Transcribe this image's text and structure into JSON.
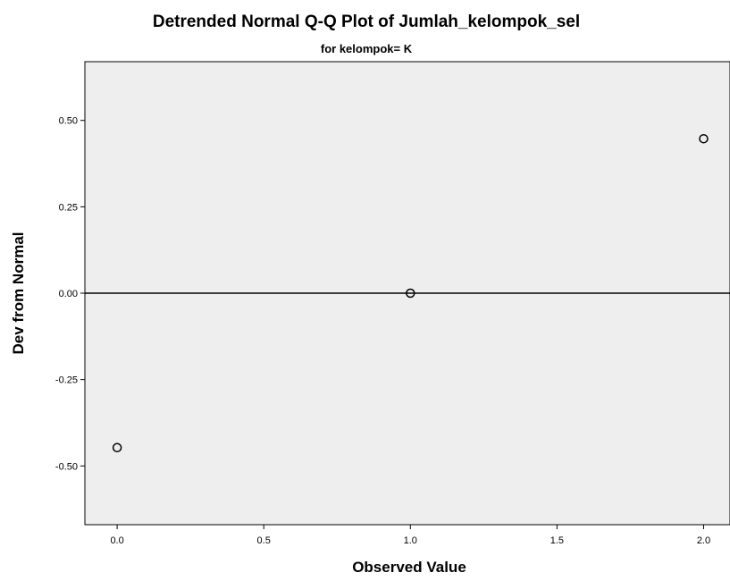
{
  "chart_data": {
    "type": "scatter",
    "title": "Detrended Normal Q-Q Plot of Jumlah_kelompok_sel",
    "subtitle": "for kelompok= K",
    "xlabel": "Observed Value",
    "ylabel": "Dev from Normal",
    "xlim": [
      -0.11,
      2.09
    ],
    "ylim": [
      -0.67,
      0.67
    ],
    "x_ticks": [
      0.0,
      0.5,
      1.0,
      1.5,
      2.0
    ],
    "x_tick_labels": [
      "0.0",
      "0.5",
      "1.0",
      "1.5",
      "2.0"
    ],
    "y_ticks": [
      0.5,
      0.25,
      0.0,
      -0.25,
      -0.5
    ],
    "y_tick_labels": [
      "0.50",
      "0.25",
      "0.00",
      "-0.25",
      "-0.50"
    ],
    "reference_line_y": 0.0,
    "points": [
      {
        "x": 0.0,
        "y": -0.447
      },
      {
        "x": 1.0,
        "y": 0.0
      },
      {
        "x": 2.0,
        "y": 0.447
      }
    ],
    "grid": false,
    "colors": {
      "plot_background": "#eeeeee",
      "marker_stroke": "#000000",
      "reference_line": "#000000"
    }
  }
}
